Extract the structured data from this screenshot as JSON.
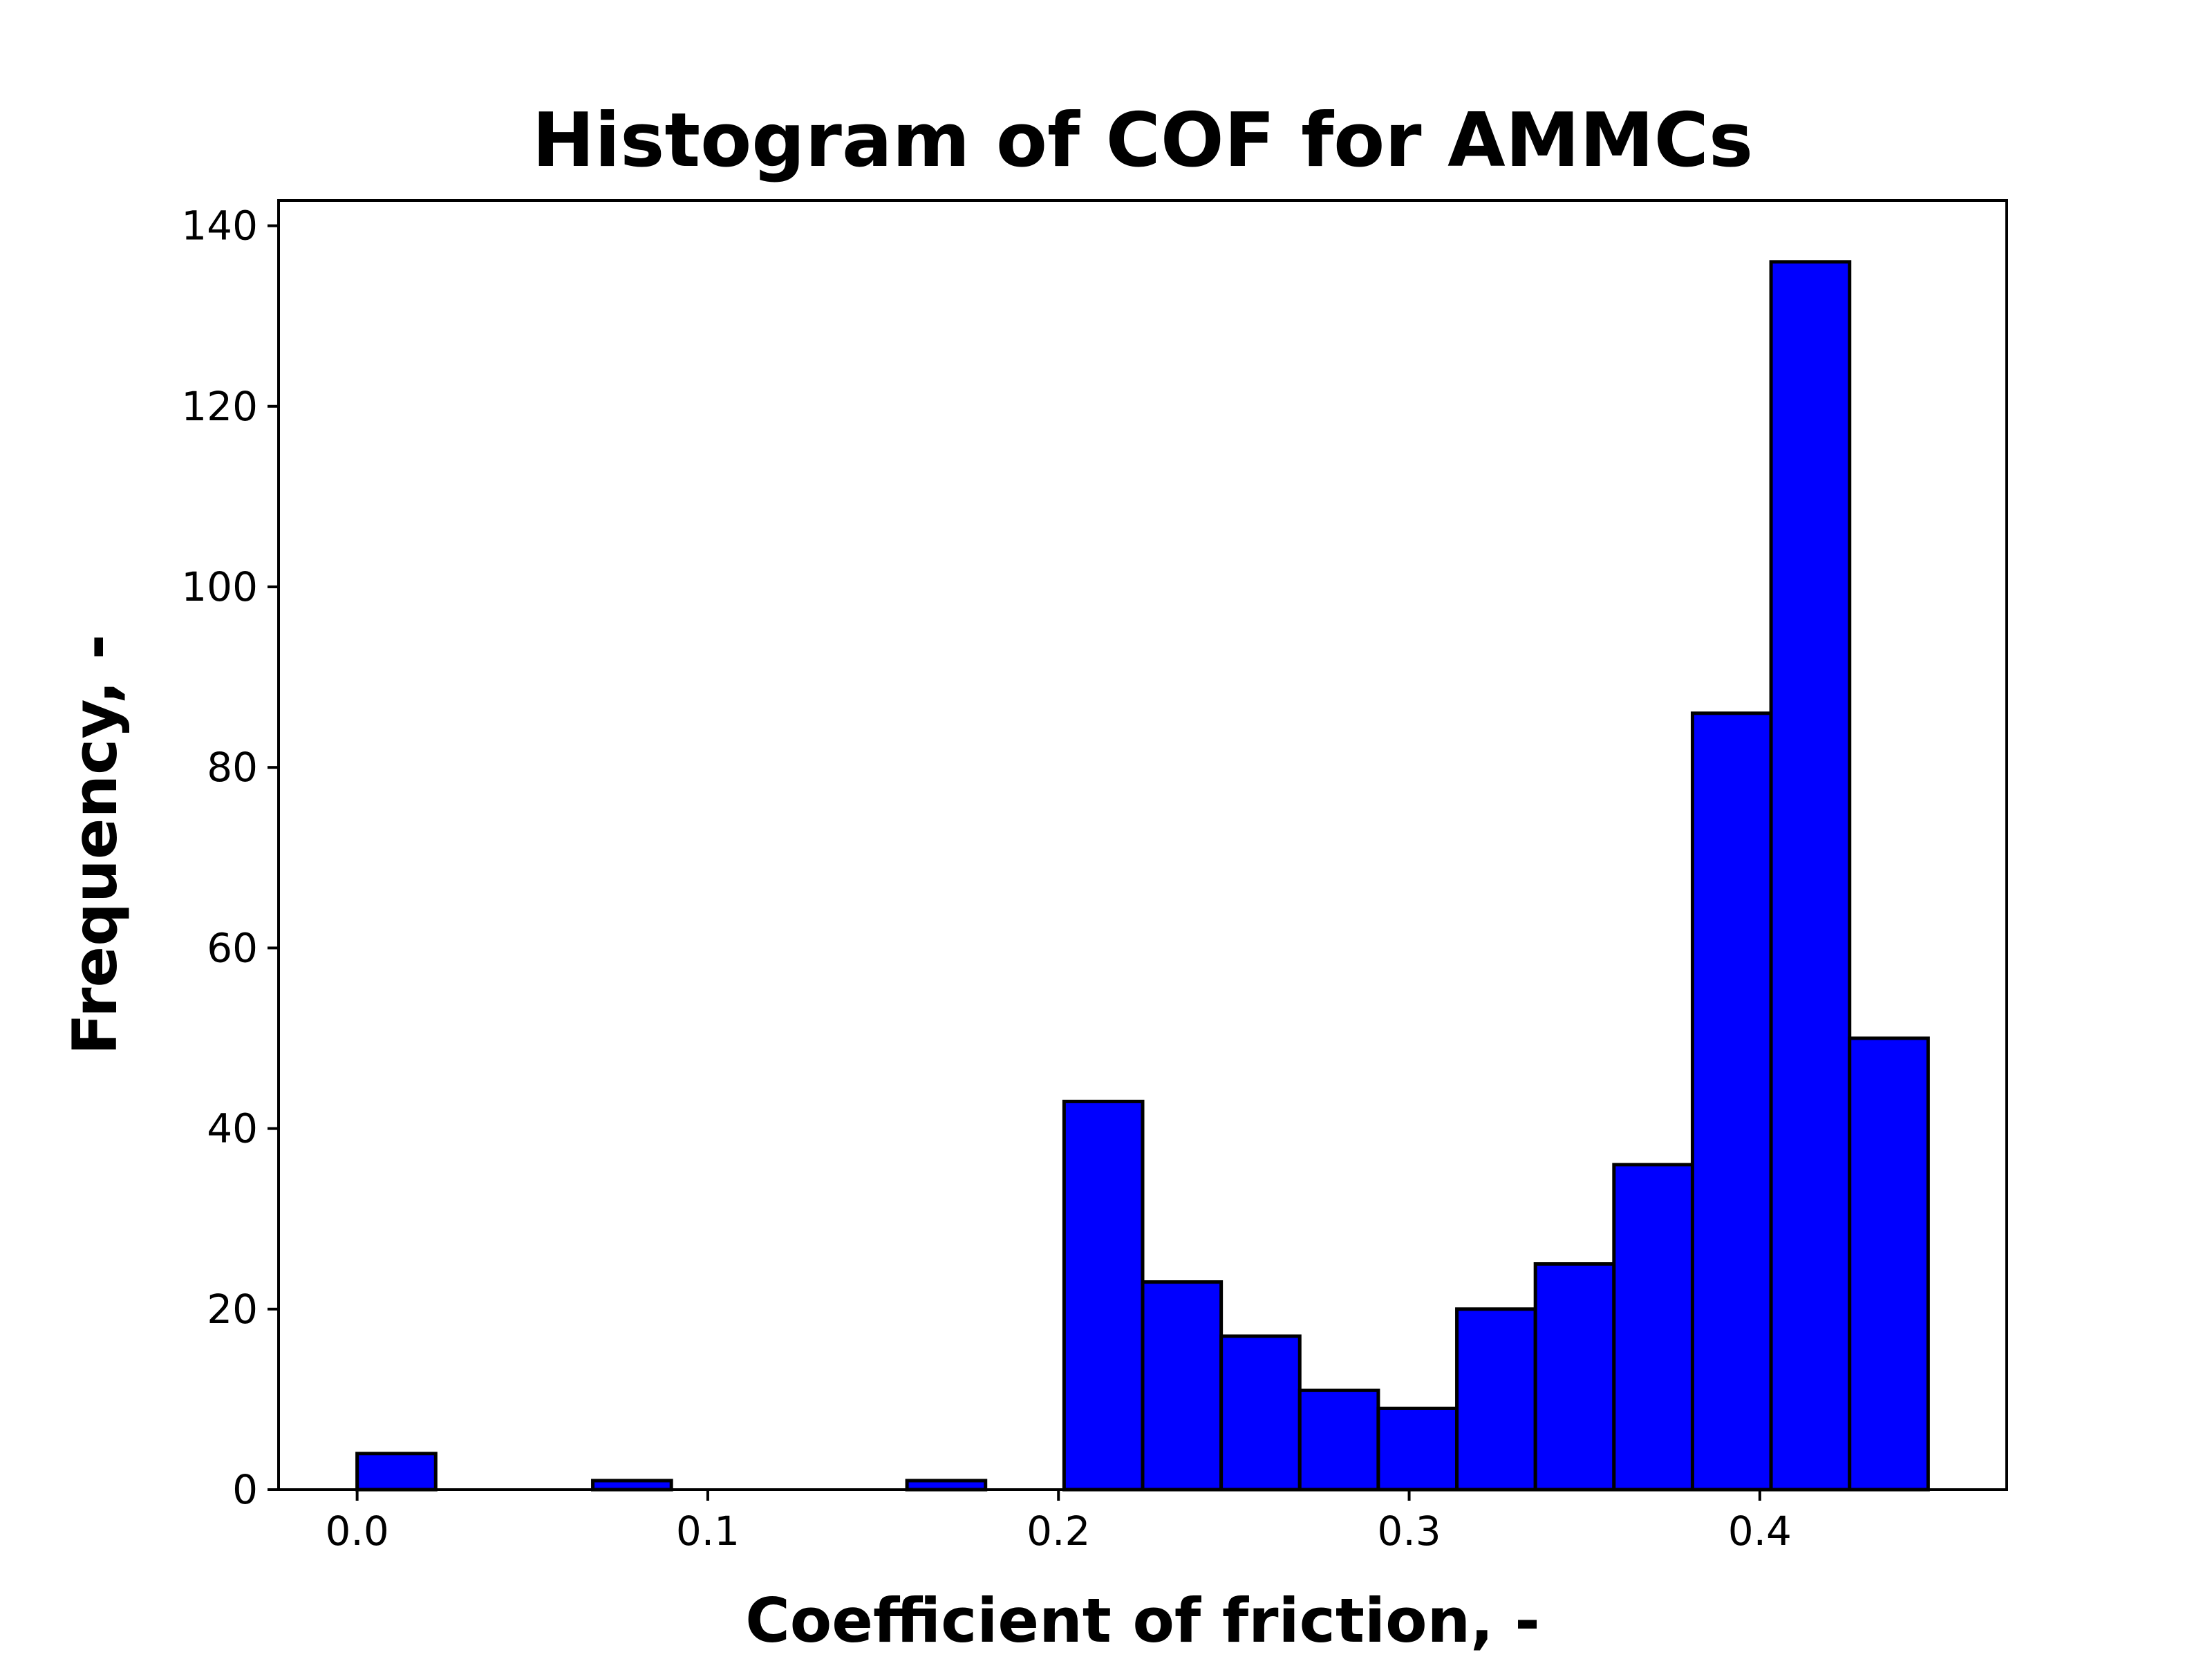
{
  "chart_data": {
    "type": "bar",
    "title": "Histogram of COF for AMMCs",
    "xlabel": "Coefficient of friction, -",
    "ylabel": "Frequency, -",
    "bar_color": "#0000ff",
    "edge_color": "#000000",
    "bins": [
      {
        "x0": 0.0,
        "x1": 0.0224,
        "count": 4
      },
      {
        "x0": 0.0224,
        "x1": 0.0448,
        "count": 0
      },
      {
        "x0": 0.0448,
        "x1": 0.0672,
        "count": 0
      },
      {
        "x0": 0.0672,
        "x1": 0.0896,
        "count": 1
      },
      {
        "x0": 0.0896,
        "x1": 0.112,
        "count": 0
      },
      {
        "x0": 0.112,
        "x1": 0.1344,
        "count": 0
      },
      {
        "x0": 0.1344,
        "x1": 0.1568,
        "count": 0
      },
      {
        "x0": 0.1568,
        "x1": 0.1792,
        "count": 1
      },
      {
        "x0": 0.1792,
        "x1": 0.2016,
        "count": 0
      },
      {
        "x0": 0.2016,
        "x1": 0.224,
        "count": 43
      },
      {
        "x0": 0.224,
        "x1": 0.2464,
        "count": 23
      },
      {
        "x0": 0.2464,
        "x1": 0.2688,
        "count": 17
      },
      {
        "x0": 0.2688,
        "x1": 0.2912,
        "count": 11
      },
      {
        "x0": 0.2912,
        "x1": 0.3136,
        "count": 9
      },
      {
        "x0": 0.3136,
        "x1": 0.336,
        "count": 20
      },
      {
        "x0": 0.336,
        "x1": 0.3584,
        "count": 25
      },
      {
        "x0": 0.3584,
        "x1": 0.3808,
        "count": 36
      },
      {
        "x0": 0.3808,
        "x1": 0.4032,
        "count": 86
      },
      {
        "x0": 0.4032,
        "x1": 0.4256,
        "count": 136
      },
      {
        "x0": 0.4256,
        "x1": 0.448,
        "count": 50
      }
    ],
    "xlim": [
      -0.0224,
      0.4704
    ],
    "ylim": [
      0,
      142.8
    ],
    "xticks": [
      0.0,
      0.1,
      0.2,
      0.3,
      0.4
    ],
    "xtick_labels": [
      "0.0",
      "0.1",
      "0.2",
      "0.3",
      "0.4"
    ],
    "yticks": [
      0,
      20,
      40,
      60,
      80,
      100,
      120,
      140
    ],
    "ytick_labels": [
      "0",
      "20",
      "40",
      "60",
      "80",
      "100",
      "120",
      "140"
    ],
    "grid": false,
    "legend": "none"
  }
}
